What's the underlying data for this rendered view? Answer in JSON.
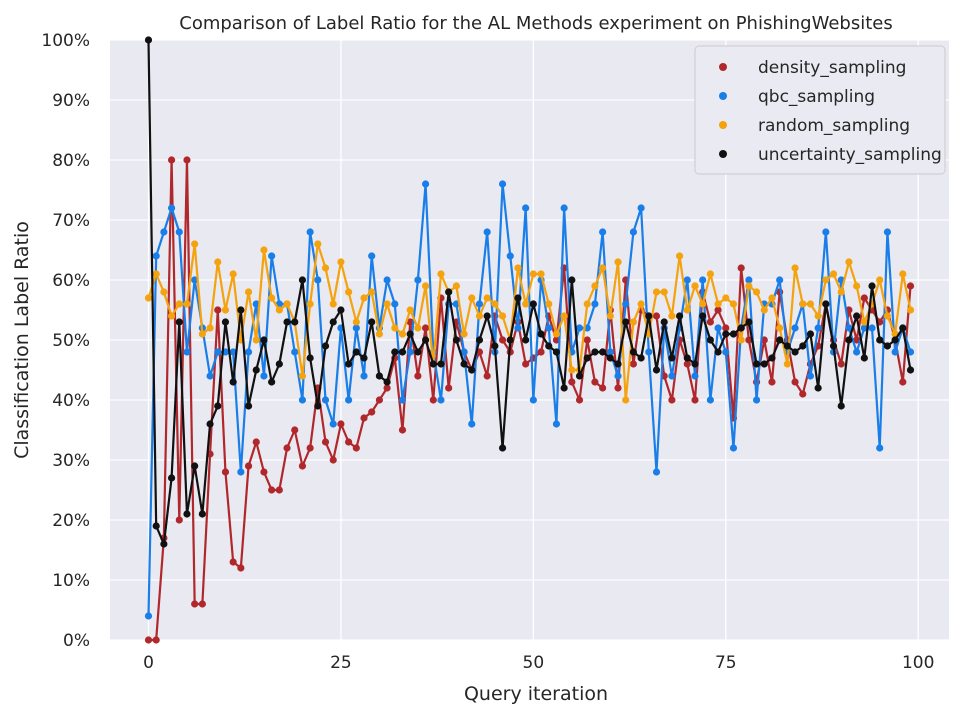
{
  "chart_data": {
    "type": "line",
    "title": "Comparison of Label Ratio for the AL Methods experiment on PhishingWebsites",
    "xlabel": "Query iteration",
    "ylabel": "Classification Label Ratio",
    "xlim": [
      -5,
      104
    ],
    "ylim": [
      0,
      1
    ],
    "xticks": [
      0,
      25,
      50,
      75,
      100
    ],
    "xtick_labels": [
      "0",
      "25",
      "50",
      "75",
      "100"
    ],
    "yticks": [
      0,
      0.1,
      0.2,
      0.3,
      0.4,
      0.5,
      0.6,
      0.7,
      0.8,
      0.9,
      1.0
    ],
    "ytick_labels": [
      "0%",
      "10%",
      "20%",
      "30%",
      "40%",
      "50%",
      "60%",
      "70%",
      "80%",
      "90%",
      "100%"
    ],
    "grid": true,
    "legend_position": "top-right",
    "background_color": "#e9e9f1",
    "x": [
      0,
      1,
      2,
      3,
      4,
      5,
      6,
      7,
      8,
      9,
      10,
      11,
      12,
      13,
      14,
      15,
      16,
      17,
      18,
      19,
      20,
      21,
      22,
      23,
      24,
      25,
      26,
      27,
      28,
      29,
      30,
      31,
      32,
      33,
      34,
      35,
      36,
      37,
      38,
      39,
      40,
      41,
      42,
      43,
      44,
      45,
      46,
      47,
      48,
      49,
      50,
      51,
      52,
      53,
      54,
      55,
      56,
      57,
      58,
      59,
      60,
      61,
      62,
      63,
      64,
      65,
      66,
      67,
      68,
      69,
      70,
      71,
      72,
      73,
      74,
      75,
      76,
      77,
      78,
      79,
      80,
      81,
      82,
      83,
      84,
      85,
      86,
      87,
      88,
      89,
      90,
      91,
      92,
      93,
      94,
      95,
      96,
      97,
      98,
      99
    ],
    "series": [
      {
        "name": "density_sampling",
        "color": "#b0282c",
        "values": [
          0.0,
          0.0,
          0.17,
          0.8,
          0.2,
          0.8,
          0.06,
          0.06,
          0.31,
          0.55,
          0.28,
          0.13,
          0.12,
          0.29,
          0.33,
          0.28,
          0.25,
          0.25,
          0.32,
          0.35,
          0.29,
          0.32,
          0.42,
          0.33,
          0.3,
          0.36,
          0.33,
          0.32,
          0.37,
          0.38,
          0.4,
          0.42,
          0.47,
          0.35,
          0.53,
          0.44,
          0.52,
          0.4,
          0.57,
          0.42,
          0.53,
          0.48,
          0.45,
          0.48,
          0.44,
          0.54,
          0.5,
          0.48,
          0.53,
          0.46,
          0.47,
          0.48,
          0.54,
          0.5,
          0.62,
          0.43,
          0.4,
          0.5,
          0.43,
          0.42,
          0.55,
          0.42,
          0.6,
          0.46,
          0.55,
          0.54,
          0.54,
          0.44,
          0.4,
          0.5,
          0.46,
          0.4,
          0.58,
          0.53,
          0.55,
          0.52,
          0.37,
          0.62,
          0.5,
          0.43,
          0.5,
          0.43,
          0.58,
          0.5,
          0.43,
          0.41,
          0.46,
          0.49,
          0.56,
          0.5,
          0.46,
          0.55,
          0.5,
          0.57,
          0.55,
          0.53,
          0.55,
          0.5,
          0.43,
          0.59
        ]
      },
      {
        "name": "qbc_sampling",
        "color": "#1a7ee8",
        "values": [
          0.04,
          0.64,
          0.68,
          0.72,
          0.68,
          0.48,
          0.6,
          0.52,
          0.44,
          0.48,
          0.48,
          0.48,
          0.28,
          0.48,
          0.56,
          0.44,
          0.64,
          0.56,
          0.56,
          0.48,
          0.4,
          0.68,
          0.6,
          0.4,
          0.36,
          0.52,
          0.4,
          0.52,
          0.44,
          0.64,
          0.52,
          0.6,
          0.56,
          0.4,
          0.48,
          0.6,
          0.76,
          0.48,
          0.4,
          0.56,
          0.56,
          0.48,
          0.36,
          0.56,
          0.68,
          0.48,
          0.76,
          0.64,
          0.52,
          0.72,
          0.4,
          0.6,
          0.52,
          0.36,
          0.72,
          0.48,
          0.52,
          0.52,
          0.56,
          0.68,
          0.48,
          0.44,
          0.56,
          0.68,
          0.72,
          0.48,
          0.28,
          0.52,
          0.44,
          0.52,
          0.6,
          0.44,
          0.6,
          0.4,
          0.52,
          0.48,
          0.32,
          0.52,
          0.6,
          0.4,
          0.56,
          0.56,
          0.6,
          0.48,
          0.52,
          0.56,
          0.44,
          0.52,
          0.68,
          0.48,
          0.6,
          0.52,
          0.48,
          0.52,
          0.52,
          0.32,
          0.68,
          0.48,
          0.52,
          0.48
        ]
      },
      {
        "name": "random_sampling",
        "color": "#f4a20d",
        "values": [
          0.57,
          0.61,
          0.58,
          0.54,
          0.56,
          0.56,
          0.66,
          0.51,
          0.52,
          0.63,
          0.55,
          0.61,
          0.5,
          0.58,
          0.5,
          0.65,
          0.57,
          0.55,
          0.56,
          0.53,
          0.44,
          0.56,
          0.66,
          0.62,
          0.56,
          0.63,
          0.58,
          0.53,
          0.57,
          0.58,
          0.51,
          0.56,
          0.52,
          0.51,
          0.55,
          0.52,
          0.59,
          0.46,
          0.61,
          0.58,
          0.59,
          0.51,
          0.57,
          0.54,
          0.57,
          0.56,
          0.54,
          0.5,
          0.62,
          0.56,
          0.61,
          0.61,
          0.56,
          0.51,
          0.54,
          0.45,
          0.45,
          0.56,
          0.59,
          0.62,
          0.54,
          0.63,
          0.4,
          0.53,
          0.56,
          0.51,
          0.58,
          0.58,
          0.54,
          0.64,
          0.55,
          0.59,
          0.56,
          0.61,
          0.56,
          0.57,
          0.56,
          0.5,
          0.59,
          0.58,
          0.55,
          0.57,
          0.52,
          0.46,
          0.62,
          0.56,
          0.56,
          0.54,
          0.6,
          0.61,
          0.58,
          0.63,
          0.59,
          0.53,
          0.56,
          0.6,
          0.54,
          0.51,
          0.61,
          0.55
        ]
      },
      {
        "name": "uncertainty_sampling",
        "color": "#111111",
        "values": [
          1.0,
          0.19,
          0.16,
          0.27,
          0.53,
          0.21,
          0.29,
          0.21,
          0.36,
          0.39,
          0.53,
          0.43,
          0.55,
          0.39,
          0.45,
          0.5,
          0.43,
          0.46,
          0.53,
          0.53,
          0.6,
          0.47,
          0.39,
          0.49,
          0.53,
          0.55,
          0.46,
          0.48,
          0.47,
          0.53,
          0.44,
          0.43,
          0.48,
          0.48,
          0.51,
          0.48,
          0.5,
          0.46,
          0.46,
          0.58,
          0.5,
          0.46,
          0.45,
          0.5,
          0.54,
          0.49,
          0.32,
          0.5,
          0.57,
          0.5,
          0.56,
          0.51,
          0.49,
          0.48,
          0.42,
          0.6,
          0.44,
          0.47,
          0.48,
          0.48,
          0.47,
          0.46,
          0.53,
          0.48,
          0.47,
          0.54,
          0.45,
          0.53,
          0.47,
          0.54,
          0.47,
          0.46,
          0.54,
          0.5,
          0.48,
          0.51,
          0.51,
          0.52,
          0.53,
          0.46,
          0.46,
          0.47,
          0.5,
          0.49,
          0.48,
          0.49,
          0.51,
          0.42,
          0.56,
          0.49,
          0.39,
          0.5,
          0.54,
          0.47,
          0.59,
          0.5,
          0.49,
          0.5,
          0.52,
          0.45
        ]
      }
    ]
  }
}
